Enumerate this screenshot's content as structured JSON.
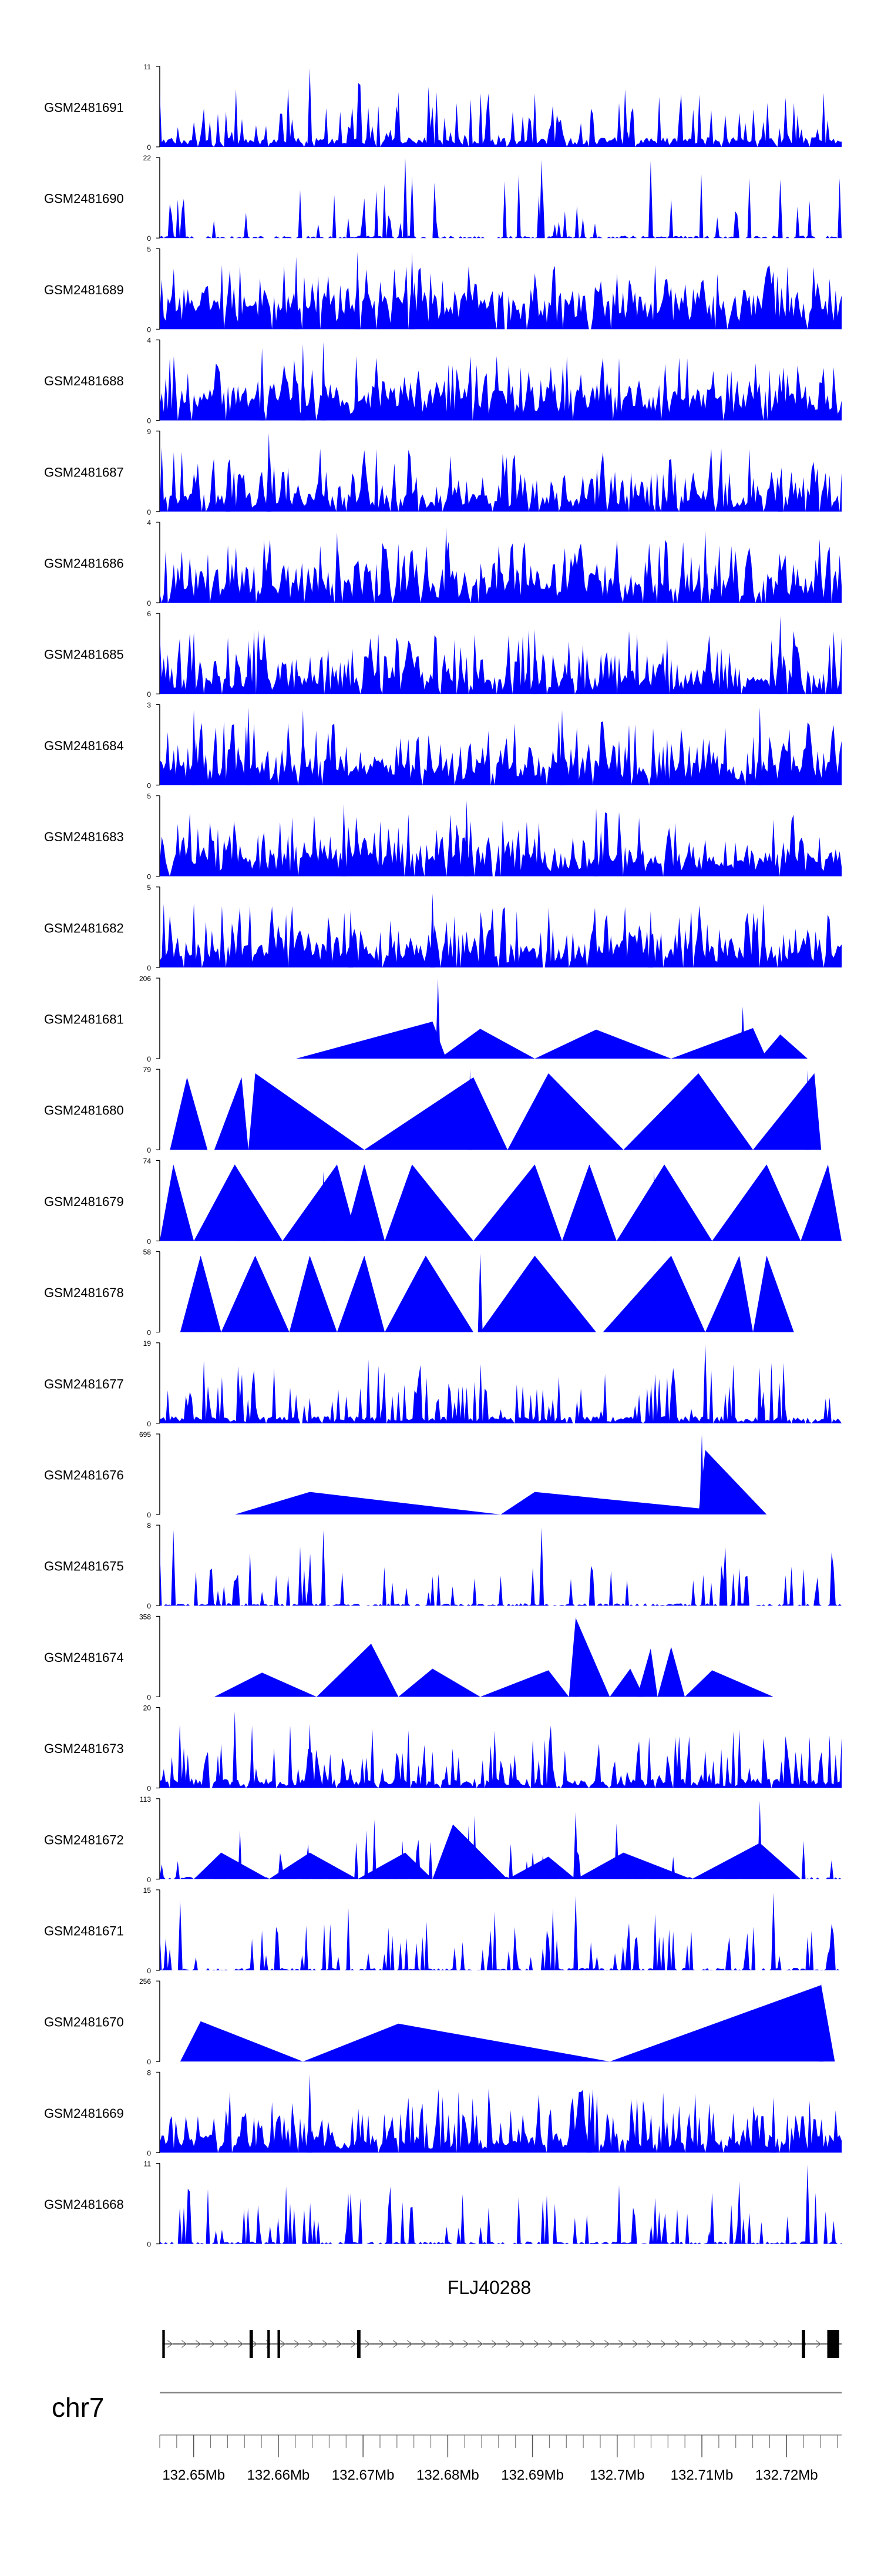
{
  "chart_data": {
    "type": "area",
    "title": "",
    "chromosome": "chr7",
    "gene": "FLJ40288",
    "xlim": [
      132.646,
      132.7265
    ],
    "x_ticks": [
      "132.65Mb",
      "132.66Mb",
      "132.67Mb",
      "132.68Mb",
      "132.69Mb",
      "132.7Mb",
      "132.71Mb",
      "132.72Mb"
    ],
    "colors": {
      "fill": "#0000ff",
      "axis": "#000000",
      "gene": "#000000",
      "ideogram": "#888888"
    },
    "tracks": [
      {
        "name": "GSM2481691",
        "ymax": 11,
        "ymin": 0,
        "style": "dense",
        "baseline": 0.08,
        "density": 1.0,
        "peaks": [
          [
            0.22,
            10.8
          ],
          [
            0.35,
            7.5
          ],
          [
            0.93,
            6
          ]
        ]
      },
      {
        "name": "GSM2481690",
        "ymax": 22,
        "ymin": 0,
        "style": "hybrid",
        "density": 0.7,
        "peaks": [
          [
            0.36,
            22
          ],
          [
            0.56,
            21.5
          ],
          [
            0.72,
            21
          ],
          [
            0.37,
            17
          ],
          [
            0.91,
            16
          ]
        ]
      },
      {
        "name": "GSM2481689",
        "ymax": 5,
        "ymin": 0,
        "style": "dense",
        "baseline": 0.25,
        "density": 2.5,
        "peaks": [
          [
            0.2,
            4.5
          ],
          [
            0.29,
            4.8
          ],
          [
            0.37,
            4.8
          ]
        ]
      },
      {
        "name": "GSM2481688",
        "ymax": 4,
        "ymin": 0,
        "style": "dense",
        "baseline": 0.25,
        "density": 2.0,
        "peaks": [
          [
            0.21,
            3.8
          ],
          [
            0.24,
            3.9
          ],
          [
            0.15,
            3.6
          ]
        ]
      },
      {
        "name": "GSM2481687",
        "ymax": 9,
        "ymin": 0,
        "style": "dense",
        "baseline": 0.15,
        "density": 1.6,
        "peaks": [
          [
            0.16,
            8.8
          ],
          [
            0.1,
            4.5
          ],
          [
            0.91,
            4
          ]
        ]
      },
      {
        "name": "GSM2481686",
        "ymax": 4,
        "ymin": 0,
        "style": "dense",
        "baseline": 0.2,
        "density": 2.2,
        "peaks": [
          [
            0.26,
            3.5
          ],
          [
            0.42,
            3.8
          ],
          [
            0.8,
            3.6
          ]
        ]
      },
      {
        "name": "GSM2481685",
        "ymax": 6,
        "ymin": 0,
        "style": "dense",
        "baseline": 0.15,
        "density": 1.8,
        "peaks": [
          [
            0.91,
            5.8
          ],
          [
            0.55,
            4.8
          ],
          [
            0.13,
            4
          ]
        ]
      },
      {
        "name": "GSM2481684",
        "ymax": 3,
        "ymin": 0,
        "style": "dense",
        "baseline": 0.2,
        "density": 2.0,
        "peaks": [
          [
            0.05,
            2.8
          ],
          [
            0.13,
            2.9
          ],
          [
            0.21,
            2.8
          ],
          [
            0.59,
            2.8
          ],
          [
            0.88,
            2.9
          ]
        ]
      },
      {
        "name": "GSM2481683",
        "ymax": 5,
        "ymin": 0,
        "style": "dense",
        "baseline": 0.2,
        "density": 1.8,
        "peaks": [
          [
            0.27,
            4.5
          ],
          [
            0.45,
            4.7
          ],
          [
            0.64,
            4.2
          ]
        ]
      },
      {
        "name": "GSM2481682",
        "ymax": 5,
        "ymin": 0,
        "style": "dense",
        "baseline": 0.2,
        "density": 1.8,
        "peaks": [
          [
            0.4,
            4.6
          ],
          [
            0.28,
            3.6
          ],
          [
            0.72,
            3.5
          ]
        ]
      },
      {
        "name": "GSM2481681",
        "ymax": 206,
        "ymin": 0,
        "style": "tri",
        "tris": [
          [
            0.2,
            0.4,
            0.42,
            0.46
          ],
          [
            0.41,
            0.47,
            0.55,
            0.37
          ],
          [
            0.55,
            0.64,
            0.75,
            0.36
          ],
          [
            0.75,
            0.87,
            0.89,
            0.38
          ],
          [
            0.88,
            0.91,
            0.95,
            0.3
          ]
        ],
        "peaks": [
          [
            0.408,
            205
          ],
          [
            0.855,
            133
          ]
        ]
      },
      {
        "name": "GSM2481680",
        "ymax": 79,
        "ymin": 0,
        "style": "tri",
        "tris": [
          [
            0.015,
            0.04,
            0.07,
            0.9
          ],
          [
            0.08,
            0.12,
            0.13,
            0.9
          ],
          [
            0.13,
            0.14,
            0.3,
            0.95
          ],
          [
            0.3,
            0.46,
            0.51,
            0.9
          ],
          [
            0.51,
            0.57,
            0.68,
            0.95
          ],
          [
            0.68,
            0.79,
            0.87,
            0.95
          ],
          [
            0.87,
            0.96,
            0.97,
            0.95
          ]
        ],
        "peaks": [
          [
            0.455,
            79
          ],
          [
            0.95,
            78
          ]
        ]
      },
      {
        "name": "GSM2481679",
        "ymax": 74,
        "ymin": 0,
        "style": "tri",
        "tris": [
          [
            0.0,
            0.02,
            0.05,
            0.95
          ],
          [
            0.05,
            0.11,
            0.18,
            0.95
          ],
          [
            0.18,
            0.26,
            0.29,
            0.95
          ],
          [
            0.27,
            0.3,
            0.33,
            0.95
          ],
          [
            0.33,
            0.37,
            0.46,
            0.95
          ],
          [
            0.46,
            0.55,
            0.59,
            0.95
          ],
          [
            0.59,
            0.63,
            0.67,
            0.95
          ],
          [
            0.67,
            0.74,
            0.81,
            0.95
          ],
          [
            0.81,
            0.89,
            0.94,
            0.95
          ],
          [
            0.94,
            0.98,
            1.0,
            0.95
          ]
        ],
        "peaks": [
          [
            0.115,
            60
          ],
          [
            0.24,
            64
          ],
          [
            0.725,
            65
          ]
        ]
      },
      {
        "name": "GSM2481678",
        "ymax": 58,
        "ymin": 0,
        "style": "tri",
        "tris": [
          [
            0.03,
            0.06,
            0.09,
            0.95
          ],
          [
            0.09,
            0.14,
            0.19,
            0.95
          ],
          [
            0.19,
            0.22,
            0.26,
            0.95
          ],
          [
            0.26,
            0.3,
            0.33,
            0.95
          ],
          [
            0.33,
            0.39,
            0.46,
            0.95
          ],
          [
            0.47,
            0.55,
            0.64,
            0.95
          ],
          [
            0.65,
            0.75,
            0.8,
            0.95
          ],
          [
            0.8,
            0.85,
            0.87,
            0.95
          ],
          [
            0.87,
            0.89,
            0.93,
            0.95
          ]
        ],
        "peaks": [
          [
            0.06,
            55
          ],
          [
            0.47,
            57
          ]
        ]
      },
      {
        "name": "GSM2481677",
        "ymax": 19,
        "ymin": 0,
        "style": "dense",
        "baseline": 0.06,
        "density": 1.0,
        "peaks": [
          [
            0.8,
            18.8
          ],
          [
            0.22,
            6
          ],
          [
            0.13,
            3
          ]
        ]
      },
      {
        "name": "GSM2481676",
        "ymax": 695,
        "ymin": 0,
        "style": "tri",
        "tris": [
          [
            0.11,
            0.22,
            0.5,
            0.28
          ],
          [
            0.5,
            0.55,
            0.88,
            0.28
          ],
          [
            0.79,
            0.8,
            0.89,
            0.8
          ]
        ],
        "peaks": [
          [
            0.795,
            690
          ]
        ]
      },
      {
        "name": "GSM2481675",
        "ymax": 8,
        "ymin": 0,
        "style": "hybrid",
        "density": 0.9,
        "peaks": [
          [
            0.02,
            7.5
          ],
          [
            0.24,
            7.5
          ],
          [
            0.56,
            7.8
          ]
        ]
      },
      {
        "name": "GSM2481674",
        "ymax": 358,
        "ymin": 0,
        "style": "tri",
        "tris": [
          [
            0.08,
            0.15,
            0.23,
            0.3
          ],
          [
            0.23,
            0.31,
            0.35,
            0.66
          ],
          [
            0.35,
            0.4,
            0.47,
            0.35
          ],
          [
            0.47,
            0.57,
            0.6,
            0.33
          ],
          [
            0.6,
            0.61,
            0.66,
            0.98
          ],
          [
            0.66,
            0.69,
            0.71,
            0.35
          ],
          [
            0.7,
            0.72,
            0.73,
            0.6
          ],
          [
            0.73,
            0.75,
            0.77,
            0.62
          ],
          [
            0.77,
            0.81,
            0.9,
            0.33
          ]
        ],
        "peaks": [
          [
            0.61,
            355
          ]
        ]
      },
      {
        "name": "GSM2481673",
        "ymax": 20,
        "ymin": 0,
        "style": "dense",
        "baseline": 0.08,
        "density": 1.2,
        "peaks": [
          [
            0.11,
            19
          ],
          [
            0.22,
            16
          ],
          [
            0.09,
            11
          ]
        ]
      },
      {
        "name": "GSM2481672",
        "ymax": 113,
        "ymin": 0,
        "style": "hybrid",
        "density": 0.4,
        "tris": [
          [
            0.05,
            0.09,
            0.16,
            0.33
          ],
          [
            0.16,
            0.22,
            0.29,
            0.33
          ],
          [
            0.29,
            0.36,
            0.4,
            0.33
          ],
          [
            0.4,
            0.43,
            0.51,
            0.68
          ],
          [
            0.51,
            0.57,
            0.61,
            0.28
          ],
          [
            0.61,
            0.68,
            0.78,
            0.33
          ],
          [
            0.78,
            0.88,
            0.94,
            0.45
          ]
        ],
        "peaks": [
          [
            0.61,
            95
          ],
          [
            0.67,
            78
          ],
          [
            0.88,
            110
          ]
        ]
      },
      {
        "name": "GSM2481671",
        "ymax": 15,
        "ymin": 0,
        "style": "hybrid",
        "density": 1.0,
        "peaks": [
          [
            0.61,
            14
          ],
          [
            0.9,
            14.5
          ],
          [
            0.03,
            13
          ]
        ]
      },
      {
        "name": "GSM2481670",
        "ymax": 256,
        "ymin": 0,
        "style": "tri",
        "tris": [
          [
            0.03,
            0.06,
            0.21,
            0.5
          ],
          [
            0.21,
            0.35,
            0.66,
            0.47
          ],
          [
            0.66,
            0.97,
            0.99,
            0.95
          ]
        ],
        "peaks": [
          [
            0.97,
            250
          ]
        ]
      },
      {
        "name": "GSM2481669",
        "ymax": 8,
        "ymin": 0,
        "style": "dense",
        "baseline": 0.15,
        "density": 1.6,
        "peaks": [
          [
            0.22,
            7.8
          ],
          [
            0.63,
            6
          ],
          [
            0.9,
            5.5
          ]
        ]
      },
      {
        "name": "GSM2481668",
        "ymax": 11,
        "ymin": 0,
        "style": "hybrid",
        "density": 1.0,
        "peaks": [
          [
            0.95,
            10.8
          ],
          [
            0.28,
            7
          ],
          [
            0.81,
            7
          ]
        ]
      }
    ],
    "gene_model": {
      "start": 132.6463,
      "end": 132.7265,
      "strand": "+",
      "exons": [
        [
          132.6463,
          132.6466
        ],
        [
          132.6566,
          132.657
        ],
        [
          132.6587,
          132.659
        ],
        [
          132.6599,
          132.6602
        ],
        [
          132.6693,
          132.6697
        ],
        [
          132.7218,
          132.7222
        ],
        [
          132.7248,
          132.7262
        ]
      ]
    }
  }
}
